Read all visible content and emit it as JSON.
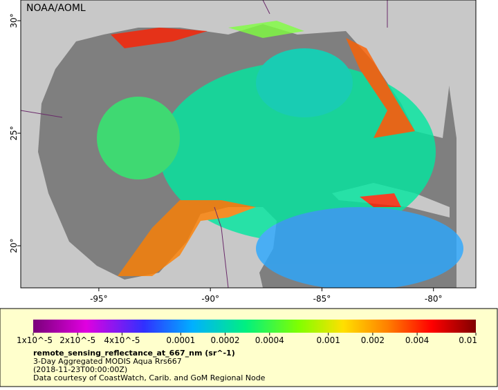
{
  "header": {
    "credit": "NOAA/AOML"
  },
  "map": {
    "lon_range": [
      -98.5,
      -78.1
    ],
    "lat_range": [
      18.13,
      30.92
    ],
    "lon_ticks": [
      {
        "value": -95,
        "label": "-95°"
      },
      {
        "value": -90,
        "label": "-90°"
      },
      {
        "value": -85,
        "label": "-85°"
      },
      {
        "value": -80,
        "label": "-80°"
      }
    ],
    "lat_ticks": [
      {
        "value": 30,
        "label": "30°"
      },
      {
        "value": 25,
        "label": "25°"
      },
      {
        "value": 20,
        "label": "20°"
      }
    ]
  },
  "colorbar": {
    "range": [
      1e-05,
      0.01
    ],
    "log": true,
    "ticks": [
      {
        "value": 1e-05,
        "label": "1x10^-5"
      },
      {
        "value": 2e-05,
        "label": "2x10^-5"
      },
      {
        "value": 4e-05,
        "label": "4x10^-5"
      },
      0.0001,
      0.0002,
      0.0004,
      0.001,
      0.002,
      0.004,
      0.01
    ]
  },
  "legend": {
    "variable": "remote_sensing_reflectance_at_667_nm (sr^-1)",
    "description": "3-Day Aggregated MODIS Aqua Rrs667",
    "date": "(2018-11-23T00:00:00Z)",
    "source": "Data courtesy of CoastWatch, Carib. and GoM Regional Node"
  }
}
